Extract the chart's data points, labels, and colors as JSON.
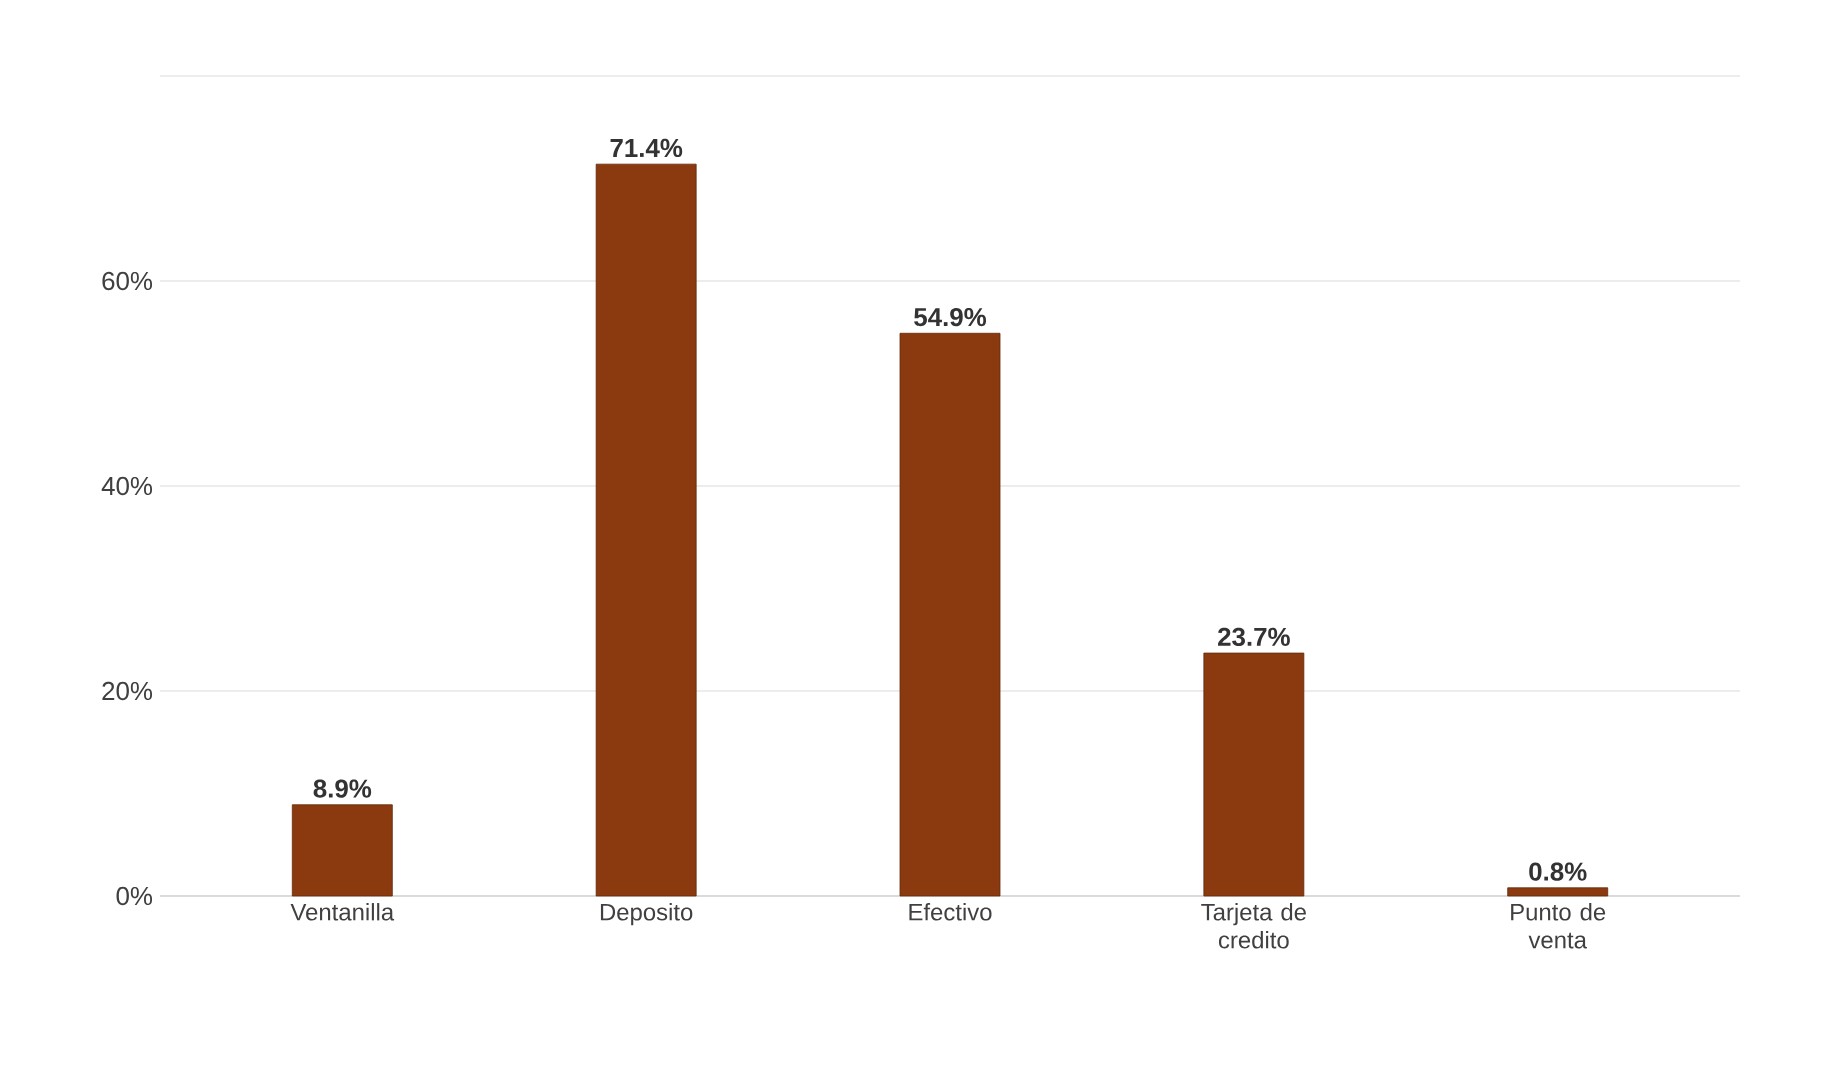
{
  "chart_data": {
    "type": "bar",
    "categories": [
      "Ventanilla",
      "Deposito",
      "Efectivo",
      "Tarjeta de credito",
      "Punto de venta"
    ],
    "values": [
      8.9,
      71.4,
      54.9,
      23.7,
      0.8
    ],
    "value_labels": [
      "8.9%",
      "71.4%",
      "54.9%",
      "23.7%",
      "0.8%"
    ],
    "color": "#8b3a0f",
    "ylim": [
      0,
      80
    ],
    "yticks": [
      {
        "value": 0,
        "label": "0%"
      },
      {
        "value": 20,
        "label": "20%"
      },
      {
        "value": 40,
        "label": "40%"
      },
      {
        "value": 60,
        "label": "60%"
      },
      {
        "value": 80,
        "label": null
      }
    ],
    "grid": "y"
  }
}
